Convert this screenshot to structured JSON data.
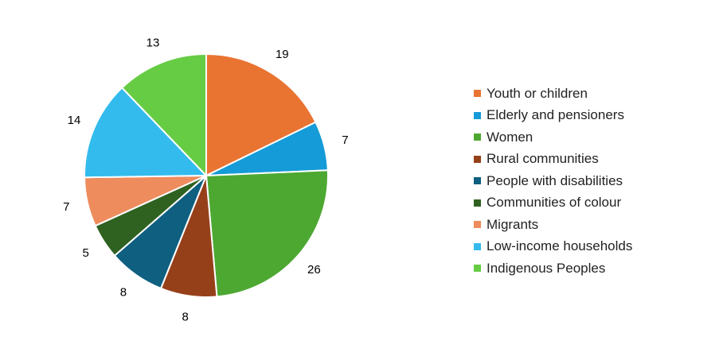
{
  "chart_data": {
    "type": "pie",
    "title": "",
    "legend_position": "right",
    "categories": [
      "Youth or children",
      "Elderly and pensioners",
      "Women",
      "Rural communities",
      "People with disabilities",
      "Communities of colour",
      "Migrants",
      "Low-income households",
      "Indigenous Peoples"
    ],
    "values": [
      19,
      7,
      26,
      8,
      8,
      5,
      7,
      14,
      13
    ],
    "colors": [
      "#E97432",
      "#159BD7",
      "#4DA832",
      "#96401A",
      "#0E5F80",
      "#2F6120",
      "#EE8C5E",
      "#33BBEE",
      "#66CC44"
    ]
  }
}
